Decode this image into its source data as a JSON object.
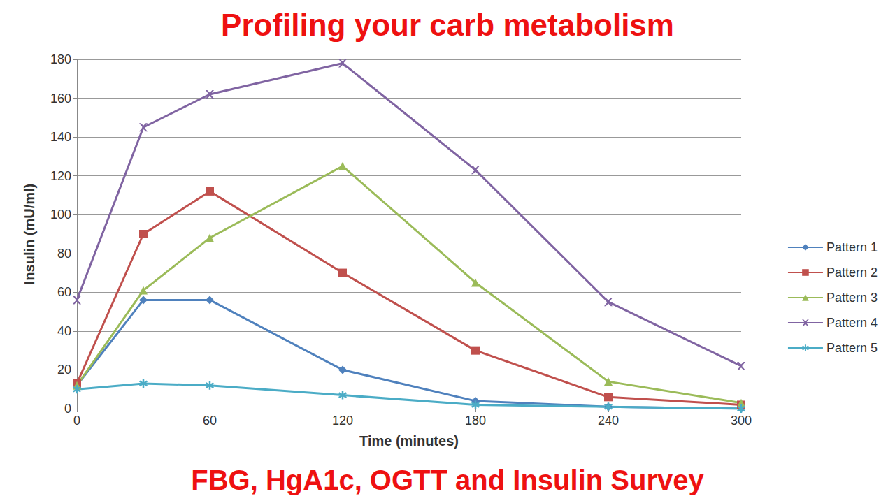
{
  "chart_data": {
    "type": "line",
    "title": "Profiling your carb metabolism",
    "subtitle": "FBG, HgA1c, OGTT and Insulin Survey",
    "x_label": "Time (minutes)",
    "y_label": "Insulin (mU/ml)",
    "x": [
      0,
      30,
      60,
      120,
      180,
      240,
      300
    ],
    "xlim": [
      0,
      300
    ],
    "xticks": [
      0,
      60,
      120,
      180,
      240,
      300
    ],
    "ylim": [
      0,
      180
    ],
    "yticks": [
      0,
      20,
      40,
      60,
      80,
      100,
      120,
      140,
      160,
      180
    ],
    "grid": true,
    "legend": "right",
    "series": [
      {
        "name": "Pattern 1",
        "color": "#4f81bd",
        "marker": "diamond",
        "values": [
          12,
          56,
          56,
          20,
          4,
          1,
          0
        ]
      },
      {
        "name": "Pattern 2",
        "color": "#c0504d",
        "marker": "square",
        "values": [
          13,
          90,
          112,
          70,
          30,
          6,
          2
        ]
      },
      {
        "name": "Pattern 3",
        "color": "#9bbb59",
        "marker": "triangle",
        "values": [
          12,
          61,
          88,
          125,
          65,
          14,
          3
        ]
      },
      {
        "name": "Pattern 4",
        "color": "#8064a2",
        "marker": "x",
        "values": [
          56,
          145,
          162,
          178,
          123,
          55,
          22
        ]
      },
      {
        "name": "Pattern 5",
        "color": "#4bacc6",
        "marker": "star",
        "values": [
          10,
          13,
          12,
          7,
          2,
          1,
          0
        ]
      }
    ]
  }
}
